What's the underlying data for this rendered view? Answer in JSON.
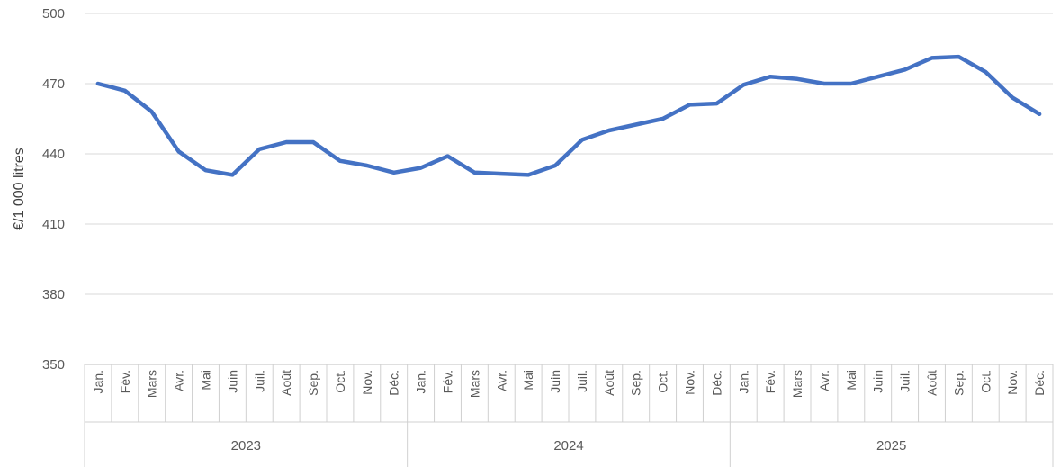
{
  "chart_data": {
    "type": "line",
    "ylabel": "€/1 000 litres",
    "ylim": [
      350,
      500
    ],
    "yticks": [
      350,
      380,
      410,
      440,
      470,
      500
    ],
    "grid": true,
    "legend": "none",
    "line_color": "#4472C4",
    "months": [
      "Jan.",
      "Fév.",
      "Mars",
      "Avr.",
      "Mai",
      "Juin",
      "Juil.",
      "Août",
      "Sep.",
      "Oct.",
      "Nov.",
      "Déc."
    ],
    "years": [
      "2023",
      "2024",
      "2025"
    ],
    "series": [
      {
        "values": [
          470,
          467,
          458,
          441,
          433,
          431,
          442,
          445,
          445,
          437,
          435,
          432,
          434,
          439,
          432,
          431.5,
          431,
          435,
          446,
          450,
          452.5,
          455,
          461,
          461.5,
          469.5,
          473,
          472,
          470,
          470,
          473,
          476,
          481,
          481.5,
          475,
          464,
          457
        ]
      }
    ]
  }
}
